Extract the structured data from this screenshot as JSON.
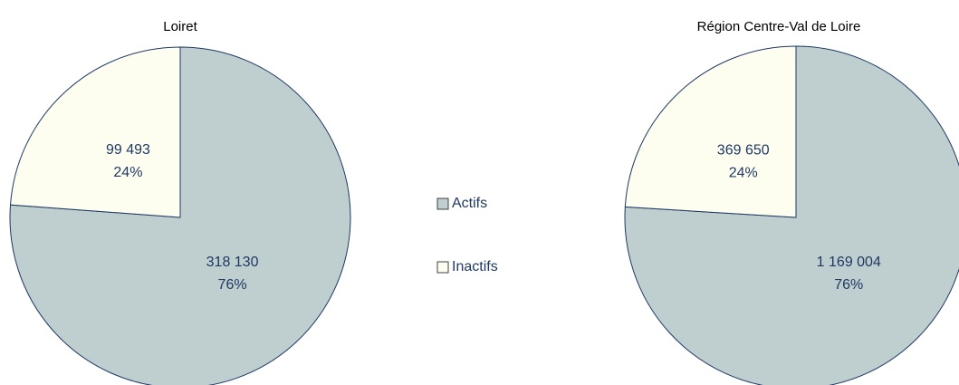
{
  "chart_data": [
    {
      "type": "pie",
      "title": "Loiret",
      "categories": [
        "Actifs",
        "Inactifs"
      ],
      "values": [
        318130,
        99493
      ],
      "value_labels": [
        "318 130",
        "99 493"
      ],
      "percent_labels": [
        "76%",
        "24%"
      ],
      "colors": [
        "#bfcfcf",
        "#fefef0"
      ],
      "legend": "center"
    },
    {
      "type": "pie",
      "title": "Région Centre-Val de Loire",
      "categories": [
        "Actifs",
        "Inactifs"
      ],
      "values": [
        1169004,
        369650
      ],
      "value_labels": [
        "1 169 004",
        "369 650"
      ],
      "percent_labels": [
        "76%",
        "24%"
      ],
      "colors": [
        "#bfcfcf",
        "#fefef0"
      ]
    }
  ]
}
